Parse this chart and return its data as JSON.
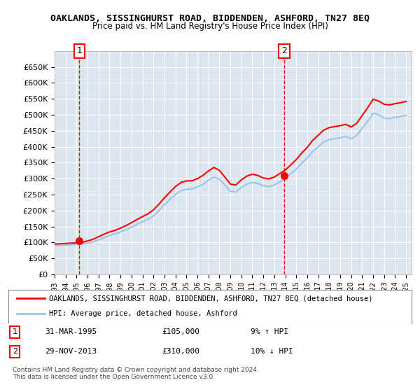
{
  "title": "OAKLANDS, SISSINGHURST ROAD, BIDDENDEN, ASHFORD, TN27 8EQ",
  "subtitle": "Price paid vs. HM Land Registry's House Price Index (HPI)",
  "legend_line1": "OAKLANDS, SISSINGHURST ROAD, BIDDENDEN, ASHFORD, TN27 8EQ (detached house)",
  "legend_line2": "HPI: Average price, detached house, Ashford",
  "annotation1": "1   31-MAR-1995        £105,000        9% ↑ HPI",
  "annotation2": "2   29-NOV-2013        £310,000        10% ↓ HPI",
  "footnote": "Contains HM Land Registry data © Crown copyright and database right 2024.\nThis data is licensed under the Open Government Licence v3.0.",
  "ylim": [
    0,
    700000
  ],
  "yticks": [
    0,
    50000,
    100000,
    150000,
    200000,
    250000,
    300000,
    350000,
    400000,
    450000,
    500000,
    550000,
    600000,
    650000
  ],
  "point1_year": 1995.25,
  "point1_value": 105000,
  "point2_year": 2013.9,
  "point2_value": 310000,
  "bg_color": "#dce6f1",
  "plot_bg": "#dce6f1",
  "grid_color": "#ffffff",
  "hpi_color": "#9dc3e6",
  "price_color": "#ff0000",
  "dashed_color": "#ff0000",
  "hpi_data": {
    "years": [
      1993,
      1993.5,
      1994,
      1994.5,
      1995,
      1995.5,
      1996,
      1996.5,
      1997,
      1997.5,
      1998,
      1998.5,
      1999,
      1999.5,
      2000,
      2000.5,
      2001,
      2001.5,
      2002,
      2002.5,
      2003,
      2003.5,
      2004,
      2004.5,
      2005,
      2005.5,
      2006,
      2006.5,
      2007,
      2007.5,
      2008,
      2008.5,
      2009,
      2009.5,
      2010,
      2010.5,
      2011,
      2011.5,
      2012,
      2012.5,
      2013,
      2013.5,
      2014,
      2014.5,
      2015,
      2015.5,
      2016,
      2016.5,
      2017,
      2017.5,
      2018,
      2018.5,
      2019,
      2019.5,
      2020,
      2020.5,
      2021,
      2021.5,
      2022,
      2022.5,
      2023,
      2023.5,
      2024,
      2024.5,
      2025
    ],
    "values": [
      90000,
      91000,
      92000,
      93000,
      94000,
      95000,
      98000,
      102000,
      108000,
      115000,
      122000,
      127000,
      133000,
      140000,
      148000,
      157000,
      165000,
      173000,
      183000,
      200000,
      218000,
      235000,
      250000,
      262000,
      267000,
      268000,
      274000,
      282000,
      295000,
      305000,
      298000,
      280000,
      260000,
      258000,
      272000,
      283000,
      288000,
      285000,
      278000,
      275000,
      280000,
      290000,
      300000,
      315000,
      330000,
      348000,
      365000,
      385000,
      400000,
      415000,
      422000,
      425000,
      428000,
      432000,
      425000,
      435000,
      458000,
      480000,
      505000,
      500000,
      490000,
      488000,
      492000,
      495000,
      498000
    ]
  },
  "price_data": {
    "years": [
      1993,
      1993.5,
      1994,
      1994.5,
      1995,
      1995.5,
      1996,
      1996.5,
      1997,
      1997.5,
      1998,
      1998.5,
      1999,
      1999.5,
      2000,
      2000.5,
      2001,
      2001.5,
      2002,
      2002.5,
      2003,
      2003.5,
      2004,
      2004.5,
      2005,
      2005.5,
      2006,
      2006.5,
      2007,
      2007.5,
      2008,
      2008.5,
      2009,
      2009.5,
      2010,
      2010.5,
      2011,
      2011.5,
      2012,
      2012.5,
      2013,
      2013.5,
      2014,
      2014.5,
      2015,
      2015.5,
      2016,
      2016.5,
      2017,
      2017.5,
      2018,
      2018.5,
      2019,
      2019.5,
      2020,
      2020.5,
      2021,
      2021.5,
      2022,
      2022.5,
      2023,
      2023.5,
      2024,
      2024.5,
      2025
    ],
    "values": [
      95000,
      96000,
      97000,
      98000,
      99000,
      100000,
      105000,
      110000,
      118000,
      126000,
      133000,
      138000,
      145000,
      153000,
      162000,
      172000,
      181000,
      190000,
      202000,
      220000,
      240000,
      258000,
      275000,
      288000,
      293000,
      293000,
      300000,
      310000,
      324000,
      335000,
      326000,
      305000,
      283000,
      280000,
      296000,
      308000,
      314000,
      310000,
      302000,
      299000,
      305000,
      316000,
      327000,
      343000,
      360000,
      380000,
      398000,
      420000,
      436000,
      452000,
      460000,
      463000,
      466000,
      470000,
      462000,
      473000,
      498000,
      522000,
      549000,
      543000,
      533000,
      531000,
      535000,
      538000,
      542000
    ]
  }
}
